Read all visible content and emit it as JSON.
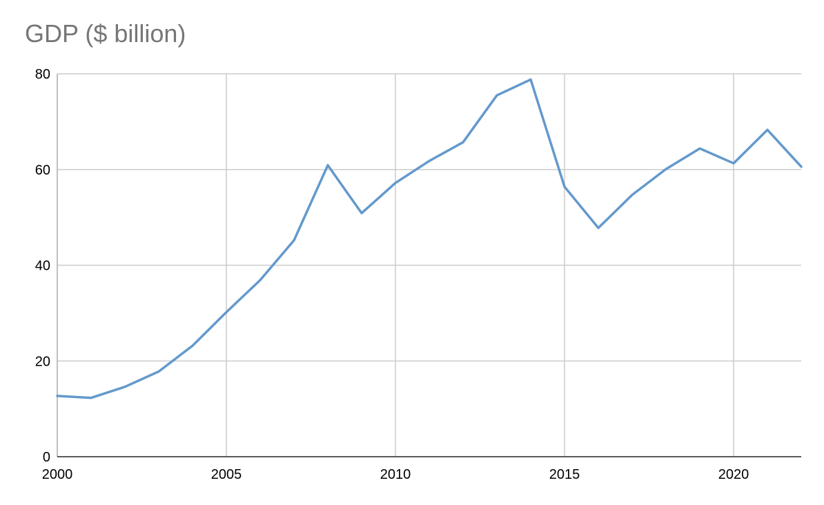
{
  "chart_data": {
    "type": "line",
    "title": "GDP ($ billion)",
    "xlabel": "",
    "ylabel": "",
    "x": [
      2000,
      2001,
      2002,
      2003,
      2004,
      2005,
      2006,
      2007,
      2008,
      2009,
      2010,
      2011,
      2012,
      2013,
      2014,
      2015,
      2016,
      2017,
      2018,
      2019,
      2020,
      2021,
      2022
    ],
    "series": [
      {
        "name": "",
        "color": "#6399CC",
        "values": [
          12.7,
          12.3,
          14.6,
          17.8,
          23.2,
          30.2,
          36.9,
          45.2,
          60.9,
          50.9,
          57.2,
          61.8,
          65.7,
          75.5,
          78.8,
          56.4,
          47.8,
          54.7,
          60.1,
          64.4,
          61.3,
          68.3,
          60.6
        ]
      }
    ],
    "xlim": [
      2000,
      2022
    ],
    "ylim": [
      0,
      80
    ],
    "xticks": [
      2000,
      2005,
      2010,
      2015,
      2020
    ],
    "yticks": [
      0,
      20,
      40,
      60,
      80
    ],
    "grid": true,
    "legend": "none"
  }
}
